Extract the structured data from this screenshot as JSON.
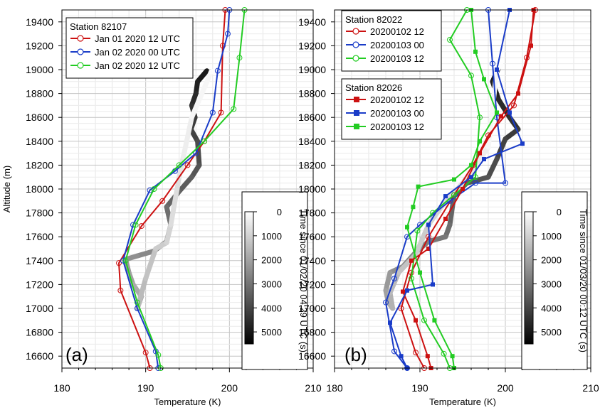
{
  "chart_data": [
    {
      "type": "line",
      "panel_label": "(a)",
      "xlabel": "Temperature (K)",
      "ylabel": "Altitude (m)",
      "xlim": [
        180,
        210
      ],
      "ylim": [
        16500,
        19500
      ],
      "xticks": [
        180,
        190,
        200,
        210
      ],
      "yticks": [
        16600,
        16800,
        17000,
        17200,
        17400,
        17600,
        17800,
        18000,
        18200,
        18400,
        18600,
        18800,
        19000,
        19200,
        19400
      ],
      "grid": true,
      "colors": {
        "red": "#cc1111",
        "blue": "#1a3cc8",
        "green": "#22cc22"
      },
      "legend_groups": [
        {
          "title": "Station 82107",
          "entries": [
            "Jan 01 2020 12 UTC",
            "Jan 02 2020 00 UTC",
            "Jan 02 2020 12 UTC"
          ]
        }
      ],
      "series": [
        {
          "name": "Jan 01 2020 12 UTC",
          "color": "#cc1111",
          "marker": "open-circle",
          "x": [
            190.5,
            190,
            187,
            186.8,
            189.5,
            192,
            195,
            197,
            199,
            199.2,
            199.5
          ],
          "y": [
            16500,
            16630,
            17150,
            17380,
            17690,
            17900,
            18200,
            18400,
            18640,
            19200,
            19500
          ]
        },
        {
          "name": "Jan 02 2020 00 UTC",
          "color": "#1a3cc8",
          "marker": "open-circle",
          "x": [
            191.5,
            191.2,
            189,
            187.3,
            188.5,
            190.5,
            193.5,
            196,
            198,
            198.6,
            199.8,
            200
          ],
          "y": [
            16500,
            16640,
            17000,
            17400,
            17700,
            17990,
            18150,
            18300,
            18640,
            18990,
            19300,
            19500
          ]
        },
        {
          "name": "Jan 02 2020 12 UTC",
          "color": "#22cc22",
          "marker": "open-circle",
          "x": [
            191.8,
            191.5,
            189,
            187.6,
            188.8,
            191,
            194,
            197,
            200.5,
            201.2,
            201.8
          ],
          "y": [
            16500,
            16610,
            17050,
            17400,
            17700,
            18000,
            18200,
            18400,
            18670,
            19100,
            19500
          ]
        }
      ],
      "colorbar": {
        "label": "Time since 01/02/20 04:29 UTC (s)",
        "ticks": [
          0,
          1000,
          2000,
          3000,
          4000,
          5000
        ],
        "range": [
          0,
          5500
        ],
        "colormap": "gray (white = 0, black = 5500)"
      },
      "trajectory": {
        "name": "in-situ temperature profile (grayscale by time)",
        "points": [
          {
            "t": 5500,
            "x": 197.3,
            "y": 18990
          },
          {
            "t": 5300,
            "x": 196.2,
            "y": 18900
          },
          {
            "t": 5100,
            "x": 196.0,
            "y": 18800
          },
          {
            "t": 4900,
            "x": 195.5,
            "y": 18700
          },
          {
            "t": 4700,
            "x": 195.9,
            "y": 18600
          },
          {
            "t": 4500,
            "x": 195.4,
            "y": 18500
          },
          {
            "t": 4300,
            "x": 196.2,
            "y": 18400
          },
          {
            "t": 4100,
            "x": 196.4,
            "y": 18200
          },
          {
            "t": 3900,
            "x": 195.5,
            "y": 18100
          },
          {
            "t": 3700,
            "x": 194.0,
            "y": 17980
          },
          {
            "t": 3500,
            "x": 192.5,
            "y": 17850
          },
          {
            "t": 3300,
            "x": 193.0,
            "y": 17700
          },
          {
            "t": 3100,
            "x": 192.5,
            "y": 17560
          },
          {
            "t": 2900,
            "x": 191.0,
            "y": 17480
          },
          {
            "t": 2700,
            "x": 189.0,
            "y": 17440
          },
          {
            "t": 2500,
            "x": 187.6,
            "y": 17410
          },
          {
            "t": 2300,
            "x": 188.0,
            "y": 17300
          },
          {
            "t": 2100,
            "x": 188.5,
            "y": 17200
          },
          {
            "t": 1900,
            "x": 189.5,
            "y": 17100
          },
          {
            "t": 1700,
            "x": 189.0,
            "y": 17000
          },
          {
            "t": 1500,
            "x": 190.0,
            "y": 17250
          },
          {
            "t": 1300,
            "x": 191.2,
            "y": 17500
          },
          {
            "t": 1100,
            "x": 192.5,
            "y": 17550
          },
          {
            "t": 900,
            "x": 193.0,
            "y": 17700
          },
          {
            "t": 700,
            "x": 194.0,
            "y": 18100
          },
          {
            "t": 500,
            "x": 194.5,
            "y": 18270
          },
          {
            "t": 300,
            "x": 195.5,
            "y": 18600
          },
          {
            "t": 100,
            "x": 197.8,
            "y": 18980
          },
          {
            "t": 0,
            "x": 198.5,
            "y": 18990
          }
        ]
      }
    },
    {
      "type": "line",
      "panel_label": "(b)",
      "xlabel": "Temperature (K)",
      "ylabel": "",
      "xlim": [
        180,
        210
      ],
      "ylim": [
        16500,
        19500
      ],
      "xticks": [
        180,
        190,
        200,
        210
      ],
      "yticks": [
        16600,
        16800,
        17000,
        17200,
        17400,
        17600,
        17800,
        18000,
        18200,
        18400,
        18600,
        18800,
        19000,
        19200,
        19400
      ],
      "grid": true,
      "legend_groups": [
        {
          "title": "Station 82022",
          "entries": [
            "20200102 12",
            "20200103 00",
            "20200103 12"
          ]
        },
        {
          "title": "Station 82026",
          "entries": [
            "20200102 12",
            "20200103 00",
            "20200103 12"
          ]
        }
      ],
      "series": [
        {
          "name": "20200102 12",
          "group": "Station 82022",
          "color": "#cc1111",
          "marker": "open-circle",
          "x": [
            190.5,
            189.5,
            187.8,
            189,
            191,
            194,
            196.2,
            198,
            201,
            202.5,
            203.5
          ],
          "y": [
            16500,
            16630,
            17000,
            17300,
            17600,
            17950,
            18200,
            18450,
            18700,
            19100,
            19500
          ]
        },
        {
          "name": "20200103 00",
          "group": "Station 82022",
          "color": "#1a3cc8",
          "marker": "open-circle",
          "x": [
            188.5,
            187,
            186,
            187,
            188.5,
            190,
            193.5,
            196.5,
            200,
            199,
            198.5,
            198
          ],
          "y": [
            16500,
            16640,
            17050,
            17250,
            17600,
            17700,
            17900,
            18050,
            18050,
            18600,
            19050,
            19500
          ]
        },
        {
          "name": "20200103 12",
          "group": "Station 82022",
          "color": "#22cc22",
          "marker": "open-circle",
          "x": [
            193.5,
            192.8,
            190.5,
            189,
            189.7,
            191.5,
            194,
            196.5,
            197,
            196,
            193.5,
            195.5
          ],
          "y": [
            16500,
            16620,
            16900,
            17250,
            17650,
            17800,
            17950,
            18100,
            18600,
            18950,
            19250,
            19500
          ]
        },
        {
          "name": "20200102 12",
          "group": "Station 82026",
          "color": "#cc1111",
          "marker": "filled-square",
          "x": [
            191.3,
            190.9,
            189.5,
            188,
            189,
            191,
            193,
            195,
            197,
            199.5,
            201.5,
            203,
            203.3
          ],
          "y": [
            16500,
            16600,
            16900,
            17140,
            17400,
            17500,
            17750,
            18000,
            18300,
            18610,
            18800,
            19200,
            19500
          ]
        },
        {
          "name": "20200103 00",
          "group": "Station 82026",
          "color": "#1a3cc8",
          "marker": "filled-square",
          "x": [
            188.5,
            187.8,
            186.5,
            188.5,
            191.5,
            191,
            193,
            196,
            197.5,
            202,
            200.5,
            199,
            200.5
          ],
          "y": [
            16500,
            16600,
            16880,
            17150,
            17200,
            17700,
            17940,
            18100,
            18250,
            18380,
            18640,
            19000,
            19500
          ]
        },
        {
          "name": "20200103 12",
          "group": "Station 82026",
          "color": "#22cc22",
          "marker": "filled-square",
          "x": [
            194,
            193.8,
            191.7,
            190,
            188.5,
            189.2,
            189.8,
            194,
            196,
            197,
            199,
            197.5,
            196.5,
            196
          ],
          "y": [
            16500,
            16600,
            16900,
            17300,
            17680,
            17850,
            18020,
            18080,
            18200,
            18400,
            18640,
            18920,
            19150,
            19500
          ]
        }
      ],
      "colorbar": {
        "label": "Time since 01/03/20 00:12 UTC (s)",
        "ticks": [
          0,
          1000,
          2000,
          3000,
          4000,
          5000
        ],
        "range": [
          0,
          5500
        ],
        "colormap": "gray (white = 0, black = 5500)"
      },
      "trajectory": {
        "name": "in-situ temperature profile (grayscale by time)",
        "points": [
          {
            "t": 5500,
            "x": 199.3,
            "y": 19030
          },
          {
            "t": 5300,
            "x": 198.5,
            "y": 18900
          },
          {
            "t": 5100,
            "x": 199.2,
            "y": 18750
          },
          {
            "t": 4900,
            "x": 200.5,
            "y": 18600
          },
          {
            "t": 4700,
            "x": 201.5,
            "y": 18500
          },
          {
            "t": 4500,
            "x": 200.0,
            "y": 18420
          },
          {
            "t": 4300,
            "x": 199.0,
            "y": 18250
          },
          {
            "t": 4100,
            "x": 198.0,
            "y": 18100
          },
          {
            "t": 3900,
            "x": 195.5,
            "y": 18050
          },
          {
            "t": 3700,
            "x": 194.0,
            "y": 17950
          },
          {
            "t": 3500,
            "x": 193.5,
            "y": 17700
          },
          {
            "t": 3300,
            "x": 193.0,
            "y": 17600
          },
          {
            "t": 3100,
            "x": 191.0,
            "y": 17560
          },
          {
            "t": 2900,
            "x": 189.5,
            "y": 17470
          },
          {
            "t": 2700,
            "x": 188.0,
            "y": 17350
          },
          {
            "t": 2500,
            "x": 186.5,
            "y": 17300
          },
          {
            "t": 2300,
            "x": 186.0,
            "y": 17150
          },
          {
            "t": 2100,
            "x": 186.3,
            "y": 17050
          },
          {
            "t": 1900,
            "x": 186.8,
            "y": 17000
          },
          {
            "t": 1700,
            "x": 186.5,
            "y": 17130
          },
          {
            "t": 1500,
            "x": 187.5,
            "y": 17300
          },
          {
            "t": 1300,
            "x": 189.5,
            "y": 17450
          },
          {
            "t": 1100,
            "x": 191.0,
            "y": 17700
          },
          {
            "t": 900,
            "x": 192.5,
            "y": 17850
          },
          {
            "t": 700,
            "x": 195.0,
            "y": 18050
          },
          {
            "t": 500,
            "x": 196.5,
            "y": 18200
          },
          {
            "t": 300,
            "x": 198.0,
            "y": 18350
          },
          {
            "t": 100,
            "x": 199.0,
            "y": 19000
          },
          {
            "t": 0,
            "x": 199.5,
            "y": 19040
          }
        ]
      }
    }
  ]
}
